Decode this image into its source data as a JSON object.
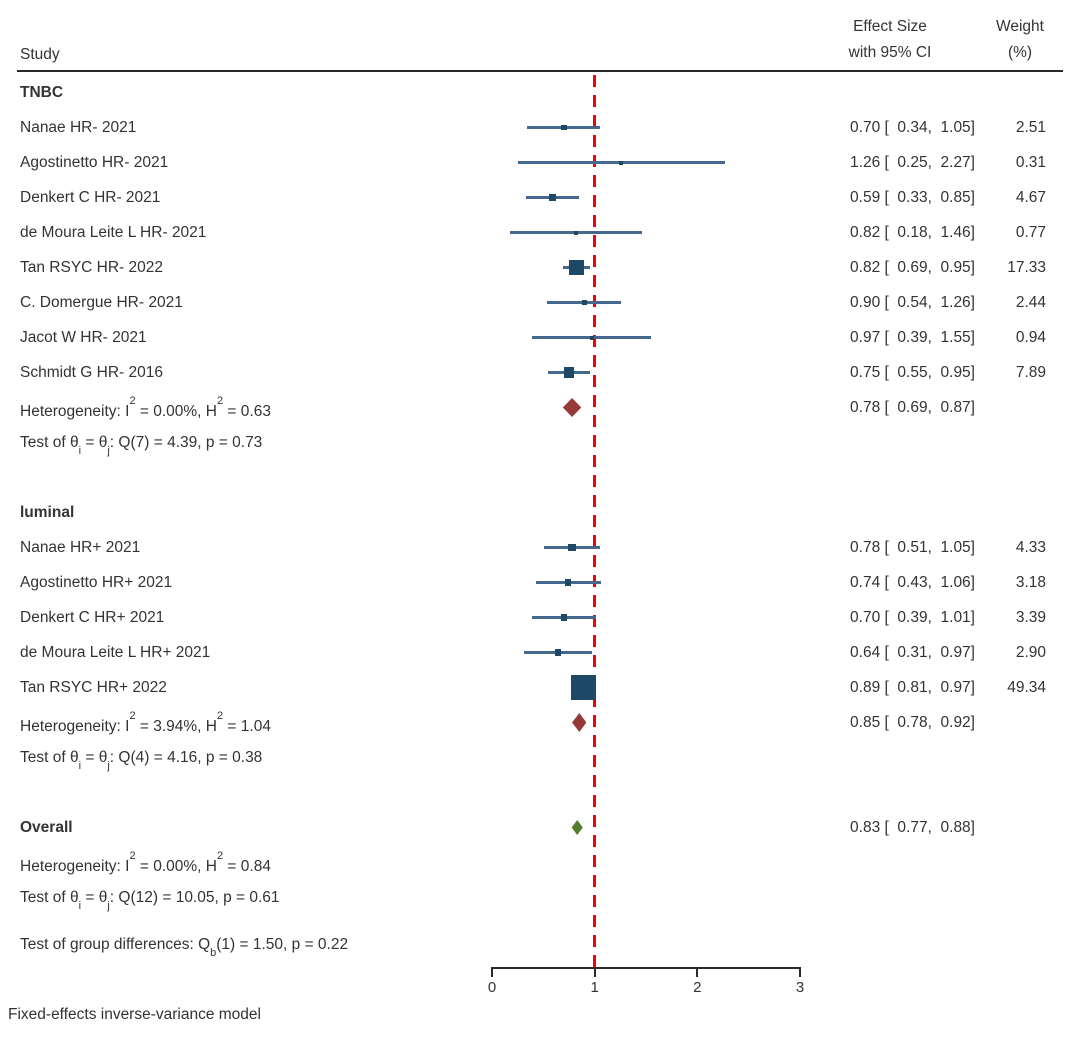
{
  "header": {
    "study_col": "Study",
    "effect_col_line1": "Effect Size",
    "effect_col_line2": "with 95% CI",
    "weight_col_line1": "Weight",
    "weight_col_line2": "(%)"
  },
  "footer": "Fixed-effects inverse-variance model",
  "colors": {
    "square_marker": "#1d4866",
    "ci_line": "#45688f",
    "group_diamond": "#963a37",
    "overall_diamond": "#567d2e",
    "reference_line": "#fa0000",
    "rule": "#2a2a2a",
    "text": "#333333"
  },
  "chart_data": {
    "type": "forest",
    "x_axis": {
      "ticks": [
        0,
        1,
        2,
        3
      ],
      "range": [
        0,
        3
      ],
      "reference_line": 1
    },
    "groups": [
      {
        "label": "TNBC",
        "studies": [
          {
            "label": "Nanae HR- 2021",
            "est": 0.7,
            "lo": 0.34,
            "hi": 1.05,
            "weight": 2.51,
            "effect_display": "0.70 [  0.34,  1.05]",
            "weight_display": "2.51"
          },
          {
            "label": "Agostinetto HR- 2021",
            "est": 1.26,
            "lo": 0.25,
            "hi": 2.27,
            "weight": 0.31,
            "effect_display": "1.26 [  0.25,  2.27]",
            "weight_display": "0.31"
          },
          {
            "label": "Denkert C HR- 2021",
            "est": 0.59,
            "lo": 0.33,
            "hi": 0.85,
            "weight": 4.67,
            "effect_display": "0.59 [  0.33,  0.85]",
            "weight_display": "4.67"
          },
          {
            "label": "de Moura Leite L HR- 2021",
            "est": 0.82,
            "lo": 0.18,
            "hi": 1.46,
            "weight": 0.77,
            "effect_display": "0.82 [  0.18,  1.46]",
            "weight_display": "0.77"
          },
          {
            "label": "Tan RSYC HR- 2022",
            "est": 0.82,
            "lo": 0.69,
            "hi": 0.95,
            "weight": 17.33,
            "effect_display": "0.82 [  0.69,  0.95]",
            "weight_display": "17.33"
          },
          {
            "label": "C. Domergue HR- 2021",
            "est": 0.9,
            "lo": 0.54,
            "hi": 1.26,
            "weight": 2.44,
            "effect_display": "0.90 [  0.54,  1.26]",
            "weight_display": "2.44"
          },
          {
            "label": "Jacot W HR- 2021",
            "est": 0.97,
            "lo": 0.39,
            "hi": 1.55,
            "weight": 0.94,
            "effect_display": "0.97 [  0.39,  1.55]",
            "weight_display": "0.94"
          },
          {
            "label": "Schmidt G HR- 2016",
            "est": 0.75,
            "lo": 0.55,
            "hi": 0.95,
            "weight": 7.89,
            "effect_display": "0.75 [  0.55,  0.95]",
            "weight_display": "7.89"
          }
        ],
        "summary": {
          "est": 0.78,
          "lo": 0.69,
          "hi": 0.87,
          "effect_display": "0.78 [  0.69,  0.87]",
          "heterogeneity": "Heterogeneity: I^2^ = 0.00%, H^2^ = 0.63",
          "test": "Test of θ_i_ = θ_j_: Q(7) = 4.39, p = 0.73"
        }
      },
      {
        "label": "luminal",
        "studies": [
          {
            "label": "Nanae HR+ 2021",
            "est": 0.78,
            "lo": 0.51,
            "hi": 1.05,
            "weight": 4.33,
            "effect_display": "0.78 [  0.51,  1.05]",
            "weight_display": "4.33"
          },
          {
            "label": "Agostinetto HR+ 2021",
            "est": 0.74,
            "lo": 0.43,
            "hi": 1.06,
            "weight": 3.18,
            "effect_display": "0.74 [  0.43,  1.06]",
            "weight_display": "3.18"
          },
          {
            "label": "Denkert C HR+ 2021",
            "est": 0.7,
            "lo": 0.39,
            "hi": 1.01,
            "weight": 3.39,
            "effect_display": "0.70 [  0.39,  1.01]",
            "weight_display": "3.39"
          },
          {
            "label": "de Moura Leite L HR+ 2021",
            "est": 0.64,
            "lo": 0.31,
            "hi": 0.97,
            "weight": 2.9,
            "effect_display": "0.64 [  0.31,  0.97]",
            "weight_display": "2.90"
          },
          {
            "label": "Tan RSYC HR+ 2022",
            "est": 0.89,
            "lo": 0.81,
            "hi": 0.97,
            "weight": 49.34,
            "effect_display": "0.89 [  0.81,  0.97]",
            "weight_display": "49.34"
          }
        ],
        "summary": {
          "est": 0.85,
          "lo": 0.78,
          "hi": 0.92,
          "effect_display": "0.85 [  0.78,  0.92]",
          "heterogeneity": "Heterogeneity: I^2^ = 3.94%, H^2^ = 1.04",
          "test": "Test of θ_i_ = θ_j_: Q(4) = 4.16, p = 0.38"
        }
      }
    ],
    "overall": {
      "label": "Overall",
      "est": 0.83,
      "lo": 0.77,
      "hi": 0.88,
      "effect_display": "0.83 [  0.77,  0.88]",
      "heterogeneity": "Heterogeneity: I^2^ = 0.00%, H^2^ = 0.84",
      "test": "Test of θ_i_ = θ_j_: Q(12) = 10.05, p = 0.61"
    },
    "group_difference_test": "Test of group differences: Q_b_(1) = 1.50, p = 0.22"
  }
}
